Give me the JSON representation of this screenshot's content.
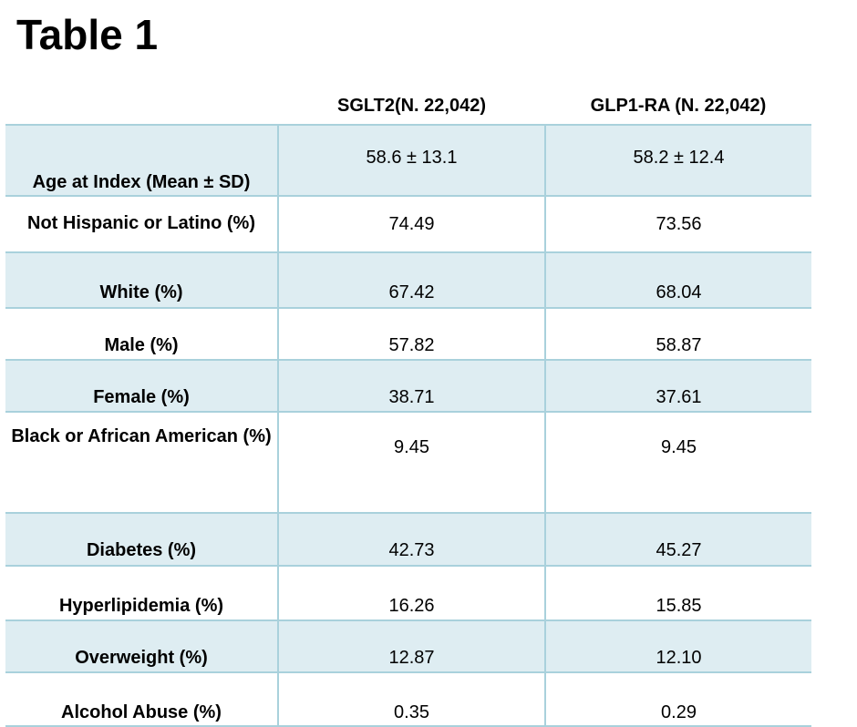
{
  "title": "Table 1",
  "table": {
    "columns": [
      "",
      "SGLT2(N. 22,042)",
      "GLP1-RA (N. 22,042)"
    ],
    "rows": [
      {
        "label": "Age at Index (Mean ± SD)",
        "sglt2": "58.6 ± 13.1",
        "glp1": "58.2 ± 12.4",
        "shaded": true
      },
      {
        "label": "Not Hispanic or Latino (%)",
        "sglt2": "74.49",
        "glp1": "73.56",
        "shaded": false
      },
      {
        "label": "White (%)",
        "sglt2": "67.42",
        "glp1": "68.04",
        "shaded": true
      },
      {
        "label": "Male (%)",
        "sglt2": "57.82",
        "glp1": "58.87",
        "shaded": false
      },
      {
        "label": "Female (%)",
        "sglt2": "38.71",
        "glp1": "37.61",
        "shaded": true
      },
      {
        "label": "Black or African American (%)",
        "sglt2": "9.45",
        "glp1": "9.45",
        "shaded": false
      },
      {
        "label": "Diabetes (%)",
        "sglt2": "42.73",
        "glp1": "45.27",
        "shaded": true
      },
      {
        "label": "Hyperlipidemia (%)",
        "sglt2": "16.26",
        "glp1": "15.85",
        "shaded": false
      },
      {
        "label": "Overweight (%)",
        "sglt2": "12.87",
        "glp1": "12.10",
        "shaded": true
      },
      {
        "label": "Alcohol Abuse (%)",
        "sglt2": "0.35",
        "glp1": "0.29",
        "shaded": false
      }
    ]
  },
  "colors": {
    "row_shade": "#deedf2",
    "rule": "#a9d1dc"
  }
}
